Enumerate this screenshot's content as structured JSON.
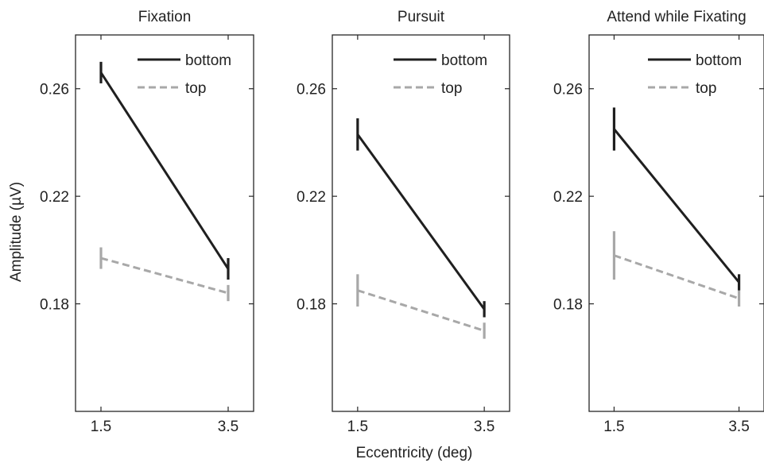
{
  "chart_data": {
    "type": "line",
    "xlabel": "Eccentricity (deg)",
    "ylabel": "Amplitude (µV)",
    "ylim": [
      0.14,
      0.28
    ],
    "yticks": [
      0.18,
      0.22,
      0.26
    ],
    "ytick_labels": [
      "0.18",
      "0.22",
      "0.26"
    ],
    "x": [
      1.5,
      3.5
    ],
    "xtick_labels": [
      "1.5",
      "3.5"
    ],
    "xlim": [
      1.1,
      3.9
    ],
    "legend_position": "top-right",
    "colors": {
      "bottom": "#1f1f1f",
      "top": "#a8a8a8"
    },
    "panels": [
      {
        "title": "Fixation",
        "series": [
          {
            "name": "bottom",
            "style": "solid",
            "values": [
              0.266,
              0.193
            ],
            "err": [
              0.004,
              0.004
            ]
          },
          {
            "name": "top",
            "style": "dashed",
            "values": [
              0.197,
              0.184
            ],
            "err": [
              0.004,
              0.003
            ]
          }
        ]
      },
      {
        "title": "Pursuit",
        "series": [
          {
            "name": "bottom",
            "style": "solid",
            "values": [
              0.243,
              0.178
            ],
            "err": [
              0.006,
              0.003
            ]
          },
          {
            "name": "top",
            "style": "dashed",
            "values": [
              0.185,
              0.17
            ],
            "err": [
              0.006,
              0.003
            ]
          }
        ]
      },
      {
        "title": "Attend while Fixating",
        "series": [
          {
            "name": "bottom",
            "style": "solid",
            "values": [
              0.245,
              0.188
            ],
            "err": [
              0.008,
              0.003
            ]
          },
          {
            "name": "top",
            "style": "dashed",
            "values": [
              0.198,
              0.182
            ],
            "err": [
              0.009,
              0.003
            ]
          }
        ]
      }
    ]
  }
}
